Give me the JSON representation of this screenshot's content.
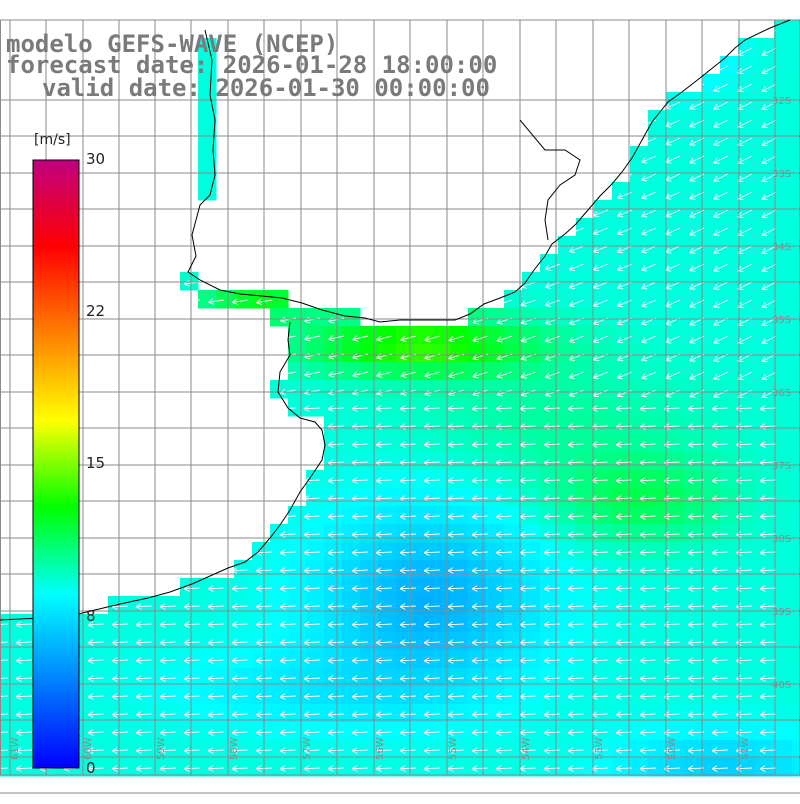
{
  "title": {
    "line1": "modelo GEFS-WAVE (NCEP)",
    "line2": "forecast date: 2026-01-28 18:00:00",
    "line3": "valid date: 2026-01-30 00:00:00"
  },
  "colorbar": {
    "unit": "[m/s]",
    "ticks": [
      "30",
      "22",
      "15",
      "8",
      "0"
    ],
    "stops": [
      "#0000ff",
      "#0080ff",
      "#00ffff",
      "#00ff00",
      "#ffff00",
      "#ff8000",
      "#ff0000",
      "#c00080"
    ]
  },
  "map": {
    "lat_labels": [
      "32S",
      "33S",
      "34S",
      "35S",
      "36S",
      "37S",
      "38S",
      "39S",
      "40S"
    ],
    "lon_labels": [
      "61W",
      "60W",
      "59W",
      "58W",
      "57W",
      "56W",
      "55W",
      "54W",
      "53W",
      "52W",
      "51W"
    ],
    "wind_direction": "from east/northeast",
    "land_color": "#ffffff",
    "coast_color": "#000000"
  }
}
